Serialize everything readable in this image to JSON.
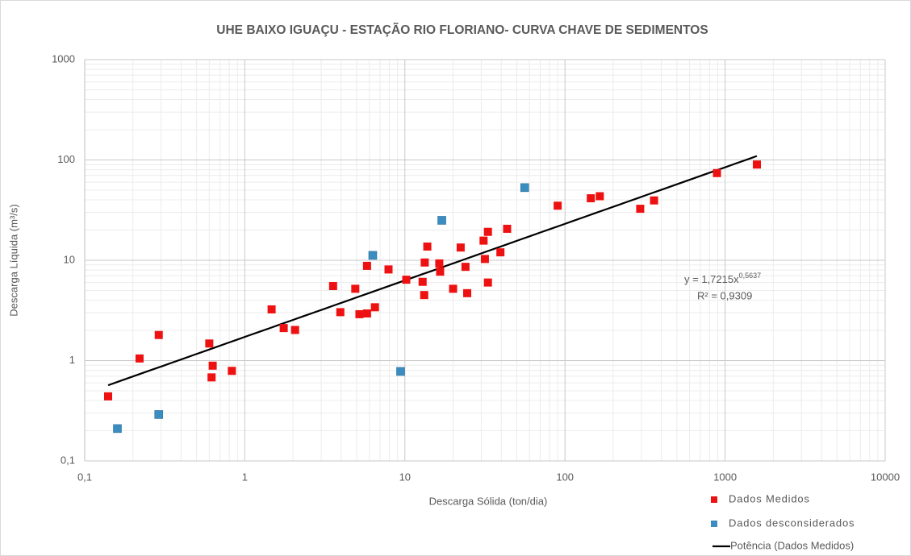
{
  "chart_data": {
    "type": "scatter",
    "title": "UHE BAIXO IGUAÇU - ESTAÇÃO RIO FLORIANO- CURVA CHAVE DE SEDIMENTOS",
    "x_label": "Descarga Sólida (ton/dia)",
    "y_label": "Descarga Líquida (m³/s)",
    "log_x": true,
    "log_y": true,
    "grid": true,
    "legend": "bottom-right",
    "xlim": [
      0.1,
      10000
    ],
    "xticks": [
      {
        "value": 0.1,
        "label": "0,1"
      },
      1,
      10,
      100,
      1000,
      10000
    ],
    "ylim": [
      0.1,
      1000
    ],
    "yticks": [
      {
        "value": 0.1,
        "label": "0,1"
      },
      1,
      10,
      100,
      1000
    ],
    "series": [
      {
        "name": "Dados Medidos",
        "color": "#ee1111",
        "x": [
          0.14,
          0.22,
          0.29,
          0.6,
          0.63,
          0.62,
          0.83,
          1.47,
          1.75,
          2.06,
          3.56,
          3.95,
          4.9,
          5.2,
          5.8,
          5.8,
          6.5,
          7.9,
          10.2,
          12.9,
          13.3,
          13.2,
          13.8,
          16.4,
          16.6,
          20,
          22.3,
          23.9,
          24.5,
          31.6,
          31,
          33,
          33,
          39.5,
          43.5,
          90,
          145,
          165,
          295,
          360,
          890,
          1580
        ],
        "values": [
          0.44,
          1.05,
          1.8,
          1.48,
          0.89,
          0.68,
          0.79,
          3.24,
          2.11,
          2.02,
          5.53,
          3.04,
          5.2,
          2.9,
          2.95,
          8.8,
          3.4,
          8.1,
          6.4,
          6.1,
          9.5,
          4.5,
          13.7,
          9.3,
          7.7,
          5.2,
          13.4,
          8.6,
          4.7,
          10.3,
          15.7,
          19.2,
          6.0,
          12.0,
          20.6,
          35,
          41.5,
          43.5,
          32.6,
          39.5,
          74,
          90
        ]
      },
      {
        "name": "Dados desconsiderados",
        "color": "#3a8dc0",
        "x": [
          0.16,
          0.29,
          6.3,
          9.4,
          17,
          56
        ],
        "values": [
          0.21,
          0.29,
          11.2,
          0.78,
          25,
          53
        ]
      }
    ],
    "trendline": {
      "name": "Potência (Dados Medidos)",
      "color": "#000000",
      "a": 1.7215,
      "b": 0.5637,
      "x_range": [
        0.14,
        1580
      ],
      "equation": "y = 1,7215x",
      "exponent": "0,5637",
      "r2": "R² = 0,9309"
    }
  }
}
